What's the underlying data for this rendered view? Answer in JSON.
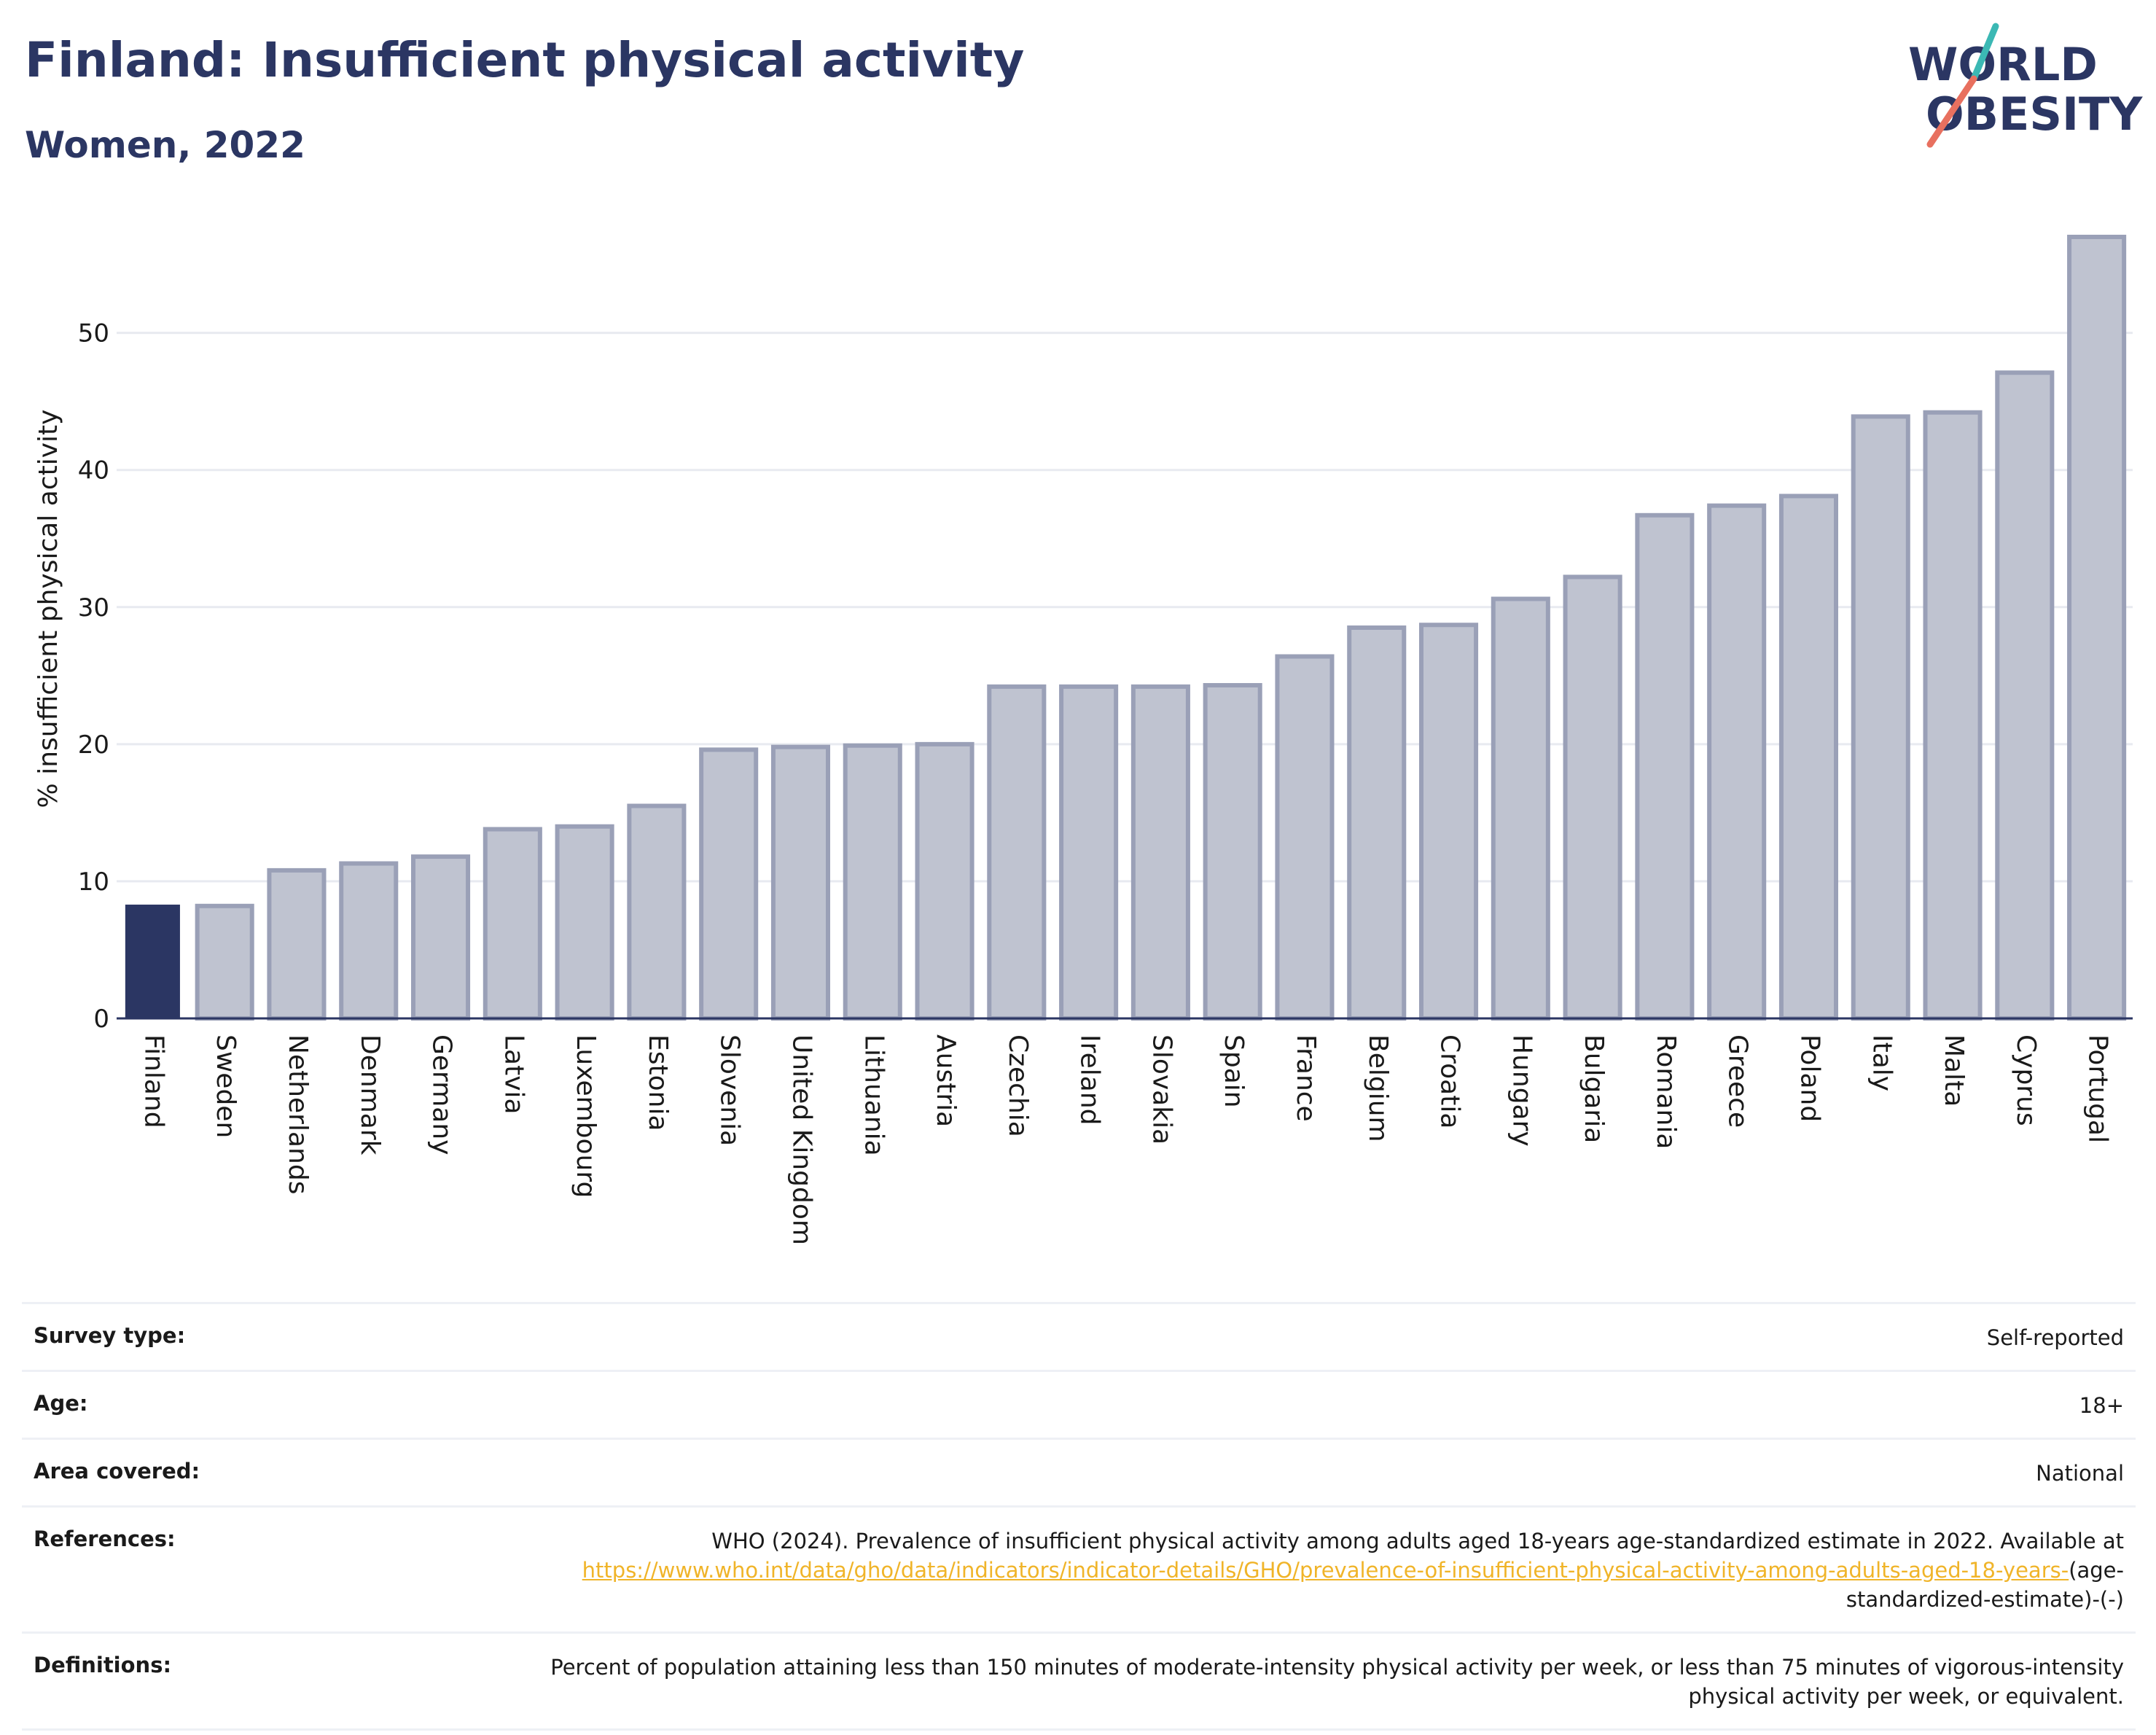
{
  "header": {
    "title": "Finland: Insufficient physical activity",
    "subtitle": "Women, 2022"
  },
  "logo": {
    "line1": "WORLD",
    "line2": "OBESITY",
    "colors": {
      "text": "#2b3663",
      "slash_teal": "#3bb8b4",
      "slash_coral": "#e8705f"
    }
  },
  "colors": {
    "highlight": "#2b3663",
    "bar_fill": "#bfc3d0",
    "bar_stroke": "#9aa0b7",
    "axis": "#2b3663",
    "grid": "#e8eaf0"
  },
  "chart_data": {
    "type": "bar",
    "title": "",
    "xlabel": "",
    "ylabel": "% insufficient physical activity",
    "ylim": [
      0,
      57
    ],
    "yticks": [
      0,
      10,
      20,
      30,
      40,
      50
    ],
    "grid": true,
    "highlight_category": "Finland",
    "categories": [
      "Finland",
      "Sweden",
      "Netherlands",
      "Denmark",
      "Germany",
      "Latvia",
      "Luxembourg",
      "Estonia",
      "Slovenia",
      "United Kingdom",
      "Lithuania",
      "Austria",
      "Czechia",
      "Ireland",
      "Slovakia",
      "Spain",
      "France",
      "Belgium",
      "Croatia",
      "Hungary",
      "Bulgaria",
      "Romania",
      "Greece",
      "Poland",
      "Italy",
      "Malta",
      "Cyprus",
      "Portugal"
    ],
    "values": [
      8.3,
      8.2,
      10.8,
      11.3,
      11.8,
      13.8,
      14.0,
      15.5,
      19.6,
      19.8,
      19.9,
      20.0,
      24.2,
      24.2,
      24.2,
      24.3,
      26.4,
      28.5,
      28.7,
      30.6,
      32.2,
      36.7,
      37.4,
      38.1,
      43.9,
      44.2,
      47.1,
      57.0
    ]
  },
  "meta": [
    {
      "label": "Survey type:",
      "value": "Self-reported"
    },
    {
      "label": "Age:",
      "value": "18+"
    },
    {
      "label": "Area covered:",
      "value": "National"
    },
    {
      "label": "References:",
      "value": "WHO (2024). Prevalence of insufficient physical activity among adults aged 18-years age-standardized estimate in 2022. Available at",
      "link": "https://www.who.int/data/gho/data/indicators/indicator-details/GHO/prevalence-of-insufficient-physical-activity-among-adults-aged-18-years-",
      "suffix": "(age-standardized-estimate)-(-)"
    },
    {
      "label": "Definitions:",
      "value": "Percent of population attaining less than 150 minutes of moderate-intensity physical activity per week, or less than 75 minutes of vigorous-intensity physical activity per week, or equivalent."
    }
  ]
}
